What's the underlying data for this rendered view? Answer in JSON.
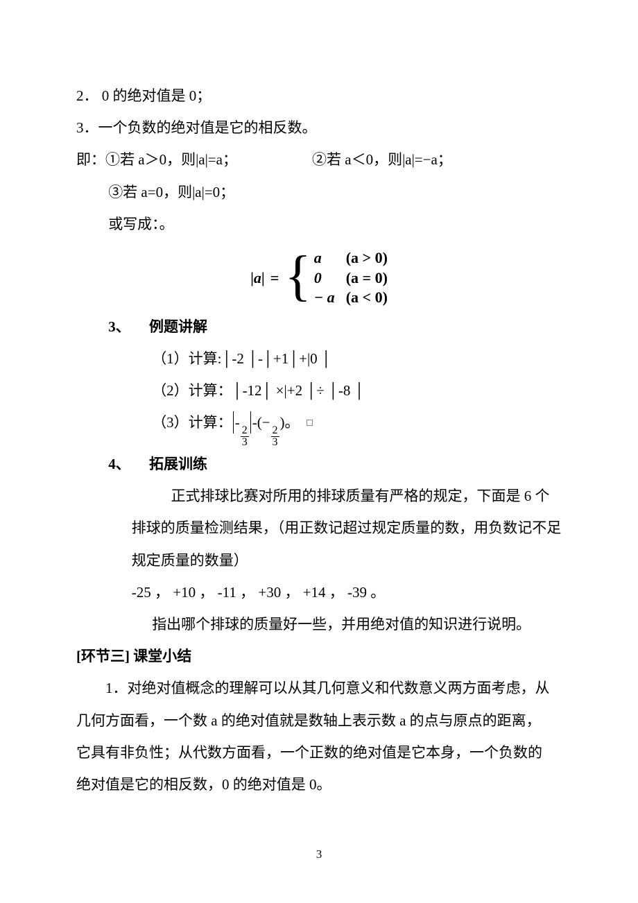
{
  "text_color": "#000000",
  "background_color": "#ffffff",
  "font_size": 21,
  "line_height": 2.2,
  "page_number": "3",
  "lines": {
    "p1": "2．  0 的绝对值是 0；",
    "p2": "3．一个负数的绝对值是它的相反数。",
    "p3a": "即：①若 a＞0，则|a|=a；",
    "p3b": "②若 a＜0，则|a|=−a；",
    "p4": "③若 a=0，则|a|=0；",
    "p5": "或写成：。"
  },
  "piecewise": {
    "lhs_left_bar": "|",
    "lhs_var": "a",
    "lhs_right_bar": "|",
    "eq": "=",
    "rows": [
      {
        "val": "a",
        "cond": "(a > 0)"
      },
      {
        "val": "0",
        "cond": "(a = 0)"
      },
      {
        "val": "− a",
        "cond": "(a < 0)"
      }
    ]
  },
  "sec3": {
    "num": "3、",
    "title": "例题讲解",
    "items": {
      "i1": "（1）计算:│-2 │-│+1│+|0 │",
      "i2": "（2）计算：│-12│ ×|+2 │÷ │-8 │",
      "i3_pre": "（3）计算：",
      "i3_f1n": "2",
      "i3_f1d": "3",
      "i3_mid": "(−",
      "i3_f2n": "2",
      "i3_f2d": "3",
      "i3_post": ")。"
    }
  },
  "sec4": {
    "num": "4、",
    "title": "拓展训练",
    "para1a": "正式排球比赛对所用的排球质量有严格的规定，下面是 6 个",
    "para1b": "排球的质量检测结果，（用正数记超过规定质量的数，用负数记不足",
    "para1c": "规定质量的数量）",
    "data": "-25 ，  +10 ， -11 ，  +30 ，  +14 ， -39  。",
    "para2": "指出哪个排球的质量好一些，并用绝对值的知识进行说明。"
  },
  "part3": {
    "title": "[环节三]  课堂小结",
    "p1": "1．对绝对值概念的理解可以从其几何意义和代数意义两方面考虑，从",
    "p2": "几何方面看，一个数 a 的绝对值就是数轴上表示数 a 的点与原点的距离，",
    "p3": "它具有非负性；从代数方面看，一个正数的绝对值是它本身，一个负数的",
    "p4": "绝对值是它的相反数，0 的绝对值是 0。"
  }
}
